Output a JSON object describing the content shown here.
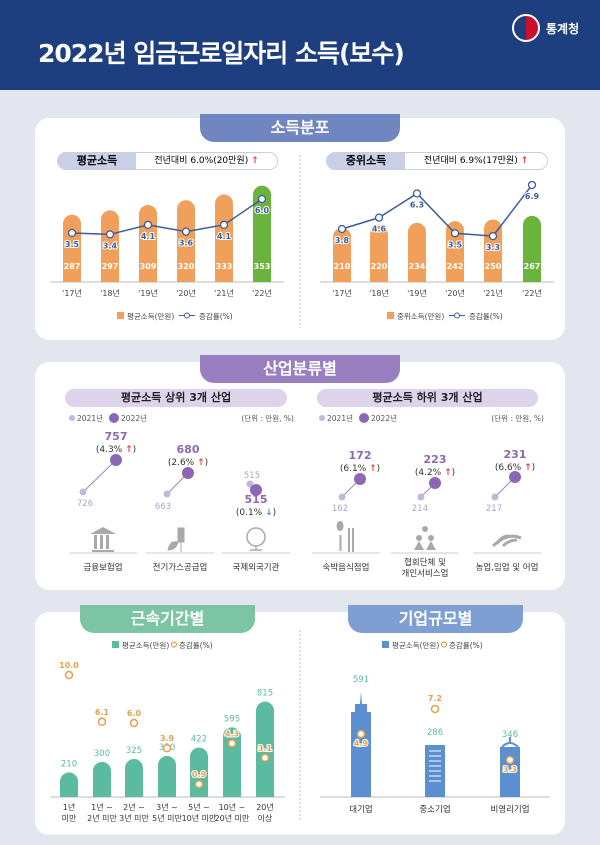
{
  "header": {
    "title": "2022년 임금근로일자리 소득(보수)",
    "org": "통계청"
  },
  "colors": {
    "header": "#1e3f7f",
    "bar_orange": "#f0a05a",
    "bar_green": "#6ab43e",
    "line_blue": "#3d5a99",
    "purple": "#8c68b4",
    "purple_light": "#c4b6dc",
    "teal": "#5bbba0",
    "orange_circle": "#e3a04b",
    "blue_bar": "#5b8fd0",
    "up_arrow": "#e0452f",
    "down_arrow": "#4a86d4"
  },
  "distribution": {
    "tab": "소득분포",
    "mean": {
      "label": "평균소득",
      "summary": "전년대비 6.0%(20만원)",
      "arrow": "↑",
      "legend_bar": "평균소득(만원)",
      "legend_line": "증감률(%)"
    },
    "median": {
      "label": "중위소득",
      "summary": "전년대비 6.9%(17만원)",
      "arrow": "↑",
      "legend_bar": "중위소득(만원)",
      "legend_line": "증감률(%)"
    }
  },
  "industry": {
    "tab": "산업분류별",
    "top": {
      "title": "평균소득 상위 3개 산업",
      "legend_2021": "2021년",
      "legend_2022": "2022년",
      "unit": "(단위 : 만원, %)"
    },
    "bottom": {
      "title": "평균소득 하위 3개 산업",
      "legend_2021": "2021년",
      "legend_2022": "2022년",
      "unit": "(단위 : 만원, %)"
    }
  },
  "tenure": {
    "tab": "근속기간별",
    "legend_bar": "평균소득(만원)",
    "legend_rate": "증감률(%)"
  },
  "firm": {
    "tab": "기업규모별",
    "legend_bar": "평균소득(만원)",
    "legend_rate": "증감률(%)"
  },
  "chart_data": [
    {
      "id": "mean",
      "type": "bar",
      "categories": [
        "'17년",
        "'18년",
        "'19년",
        "'20년",
        "'21년",
        "'22년"
      ],
      "series": [
        {
          "name": "평균소득(만원)",
          "values": [
            287,
            297,
            309,
            320,
            333,
            353
          ]
        },
        {
          "name": "증감률(%)",
          "type": "line",
          "values": [
            3.5,
            3.4,
            4.1,
            3.6,
            4.1,
            6.0
          ]
        }
      ]
    },
    {
      "id": "median",
      "type": "bar",
      "categories": [
        "'17년",
        "'18년",
        "'19년",
        "'20년",
        "'21년",
        "'22년"
      ],
      "series": [
        {
          "name": "중위소득(만원)",
          "values": [
            210,
            220,
            234,
            242,
            250,
            267
          ]
        },
        {
          "name": "증감률(%)",
          "type": "line",
          "values": [
            3.8,
            4.6,
            6.3,
            3.5,
            3.3,
            6.9
          ]
        }
      ]
    },
    {
      "id": "industry_top",
      "type": "scatter",
      "categories": [
        "금융보험업",
        "전기가스공급업",
        "국제외국기관"
      ],
      "series": [
        {
          "name": "2021년",
          "values": [
            726,
            663,
            515
          ]
        },
        {
          "name": "2022년",
          "values": [
            757,
            680,
            515
          ]
        }
      ],
      "change_pct": [
        "4.3%",
        "2.6%",
        "0.1%"
      ],
      "direction": [
        "up",
        "up",
        "down"
      ],
      "icons": [
        "bank-icon",
        "power-plug-icon",
        "globe-icon"
      ]
    },
    {
      "id": "industry_bottom",
      "type": "scatter",
      "categories": [
        "숙박음식점업",
        "협회단체 및\n개인서비스업",
        "농업,임업 및 어업"
      ],
      "series": [
        {
          "name": "2021년",
          "values": [
            162,
            214,
            217
          ]
        },
        {
          "name": "2022년",
          "values": [
            172,
            223,
            231
          ]
        }
      ],
      "change_pct": [
        "6.1%",
        "4.2%",
        "6.6%"
      ],
      "direction": [
        "up",
        "up",
        "up"
      ],
      "icons": [
        "spoon-chopsticks-icon",
        "people-icon",
        "wheat-icon"
      ]
    },
    {
      "id": "tenure",
      "type": "bar",
      "categories": [
        "1년\n미만",
        "1년 ~\n2년 미만",
        "2년 ~\n3년 미만",
        "3년 ~\n5년 미만",
        "5년 ~\n10년 미만",
        "10년 ~\n20년 미만",
        "20년\n이상"
      ],
      "series": [
        {
          "name": "평균소득(만원)",
          "values": [
            210,
            300,
            325,
            350,
            422,
            595,
            815
          ]
        },
        {
          "name": "증감률(%)",
          "type": "scatter",
          "values": [
            "10.0",
            "6.1",
            "6.0",
            "3.9",
            "0.9",
            "4.3",
            "3.1"
          ]
        }
      ]
    },
    {
      "id": "firm",
      "type": "bar",
      "categories": [
        "대기업",
        "중소기업",
        "비영리기업"
      ],
      "series": [
        {
          "name": "평균소득(만원)",
          "values": [
            591,
            286,
            346
          ]
        },
        {
          "name": "증감률(%)",
          "type": "scatter",
          "values": [
            "4.9",
            "7.2",
            "3.3"
          ]
        }
      ]
    }
  ]
}
